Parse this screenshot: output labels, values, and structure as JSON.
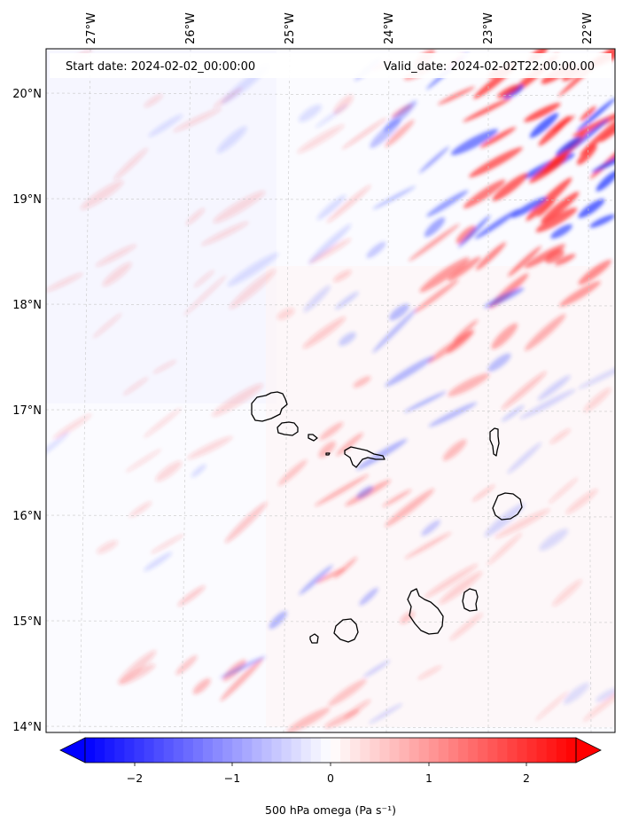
{
  "map": {
    "header": {
      "start": "Start date: 2024-02-02_00:00:00",
      "valid": "Valid_date: 2024-02-02T22:00:00.00"
    },
    "lon_ticks": [
      "27°W",
      "26°W",
      "25°W",
      "24°W",
      "23°W",
      "22°W"
    ],
    "lat_ticks": [
      "20°N",
      "19°N",
      "18°N",
      "17°N",
      "16°N",
      "15°N",
      "14°N"
    ],
    "colorbar": {
      "ticks": [
        "−2",
        "−1",
        "0",
        "1",
        "2"
      ],
      "label": "500 hPa omega (Pa s⁻¹)",
      "range": [
        -2.5,
        2.5
      ],
      "extend": "both",
      "colormap": "bwr",
      "low_color": "#0000ff",
      "mid_color": "#ffffff",
      "high_color": "#ff0000"
    },
    "islands": [
      "Santo Antão",
      "São Vicente",
      "Santa Luzia",
      "Branco",
      "São Nicolau",
      "Sal",
      "Boa Vista",
      "Maio",
      "Santiago",
      "Fogo",
      "Brava"
    ]
  }
}
